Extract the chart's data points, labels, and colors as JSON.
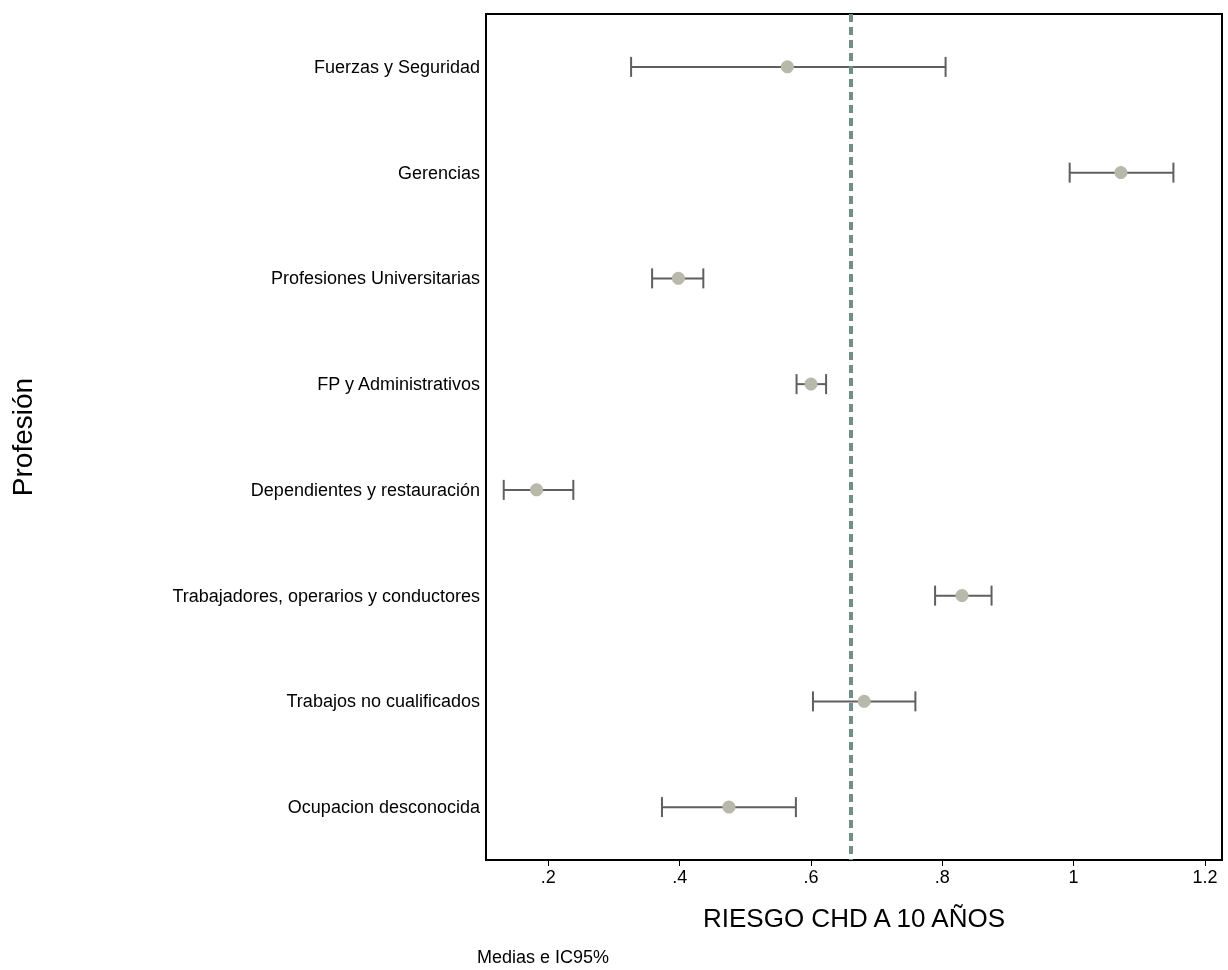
{
  "chart_data": {
    "type": "scatter",
    "orientation": "horizontal",
    "xlabel": "RIESGO CHD A 10 AÑOS",
    "ylabel": "Profesión",
    "annotations": [
      "Medias e IC95%"
    ],
    "categories": [
      "Fuerzas y Seguridad",
      "Gerencias",
      "Profesiones Universitarias",
      "FP y Administrativos",
      "Dependientes y restauración",
      "Trabajadores, operarios y conductores",
      "Trabajos no cualificados",
      "Ocupacion desconocida"
    ],
    "values": [
      0.564,
      1.072,
      0.398,
      0.6,
      0.182,
      0.83,
      0.681,
      0.475
    ],
    "errors": [
      [
        0.326,
        0.805
      ],
      [
        0.994,
        1.152
      ],
      [
        0.358,
        0.436
      ],
      [
        0.578,
        0.623
      ],
      [
        0.132,
        0.238
      ],
      [
        0.789,
        0.875
      ],
      [
        0.603,
        0.759
      ],
      [
        0.373,
        0.577
      ]
    ],
    "color": "#b9b9ab",
    "marker": "circle",
    "xlim": [
      0.105,
      1.226
    ],
    "xticks": [
      {
        "value": 0.2,
        "label": ".2"
      },
      {
        "value": 0.4,
        "label": ".4"
      },
      {
        "value": 0.6,
        "label": ".6"
      },
      {
        "value": 0.8,
        "label": ".8"
      },
      1,
      1.2
    ],
    "ref_lines": [
      {
        "axis": "x",
        "value": 0.657,
        "label": null,
        "color": "#6f8f87",
        "line_style": "dashed"
      }
    ],
    "grid": false
  }
}
